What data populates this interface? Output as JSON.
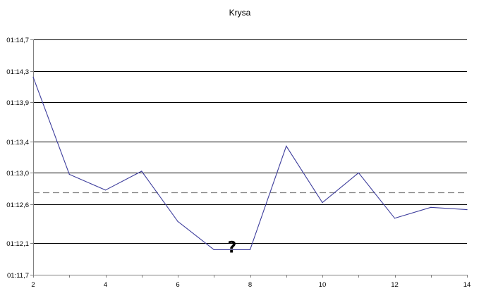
{
  "chart_data": {
    "type": "line",
    "title": "Krysa",
    "xlabel": "",
    "ylabel": "",
    "x": [
      2,
      3,
      4,
      5,
      6,
      7,
      8,
      9,
      10,
      11,
      12,
      13,
      14
    ],
    "series": [
      {
        "values": [
          74.22,
          72.98,
          72.78,
          73.02,
          72.38,
          72.02,
          72.02,
          73.34,
          72.62,
          73.0,
          72.42,
          72.56,
          72.53
        ]
      }
    ],
    "reference_line": {
      "value": 72.75,
      "style": "dashed"
    },
    "x_ticks": [
      "2",
      "4",
      "6",
      "8",
      "10",
      "12",
      "14"
    ],
    "y_ticks": [
      "01:11,7",
      "01:12,1",
      "01:12,6",
      "01:13,0",
      "01:13,4",
      "01:13,9",
      "01:14,3",
      "01:14,7"
    ],
    "y_tick_values": [
      71.7,
      72.1,
      72.6,
      73.0,
      73.4,
      73.9,
      74.3,
      74.7
    ],
    "xlim": [
      2,
      14
    ],
    "ylim": [
      71.7,
      74.7
    ],
    "grid": "horizontal",
    "annotation": {
      "text": "?",
      "x": 7.5,
      "y": 72.02
    },
    "colors": {
      "series": "#3d3d9c",
      "grid": "#000000",
      "reference": "#808080",
      "axis": "#808080"
    }
  }
}
